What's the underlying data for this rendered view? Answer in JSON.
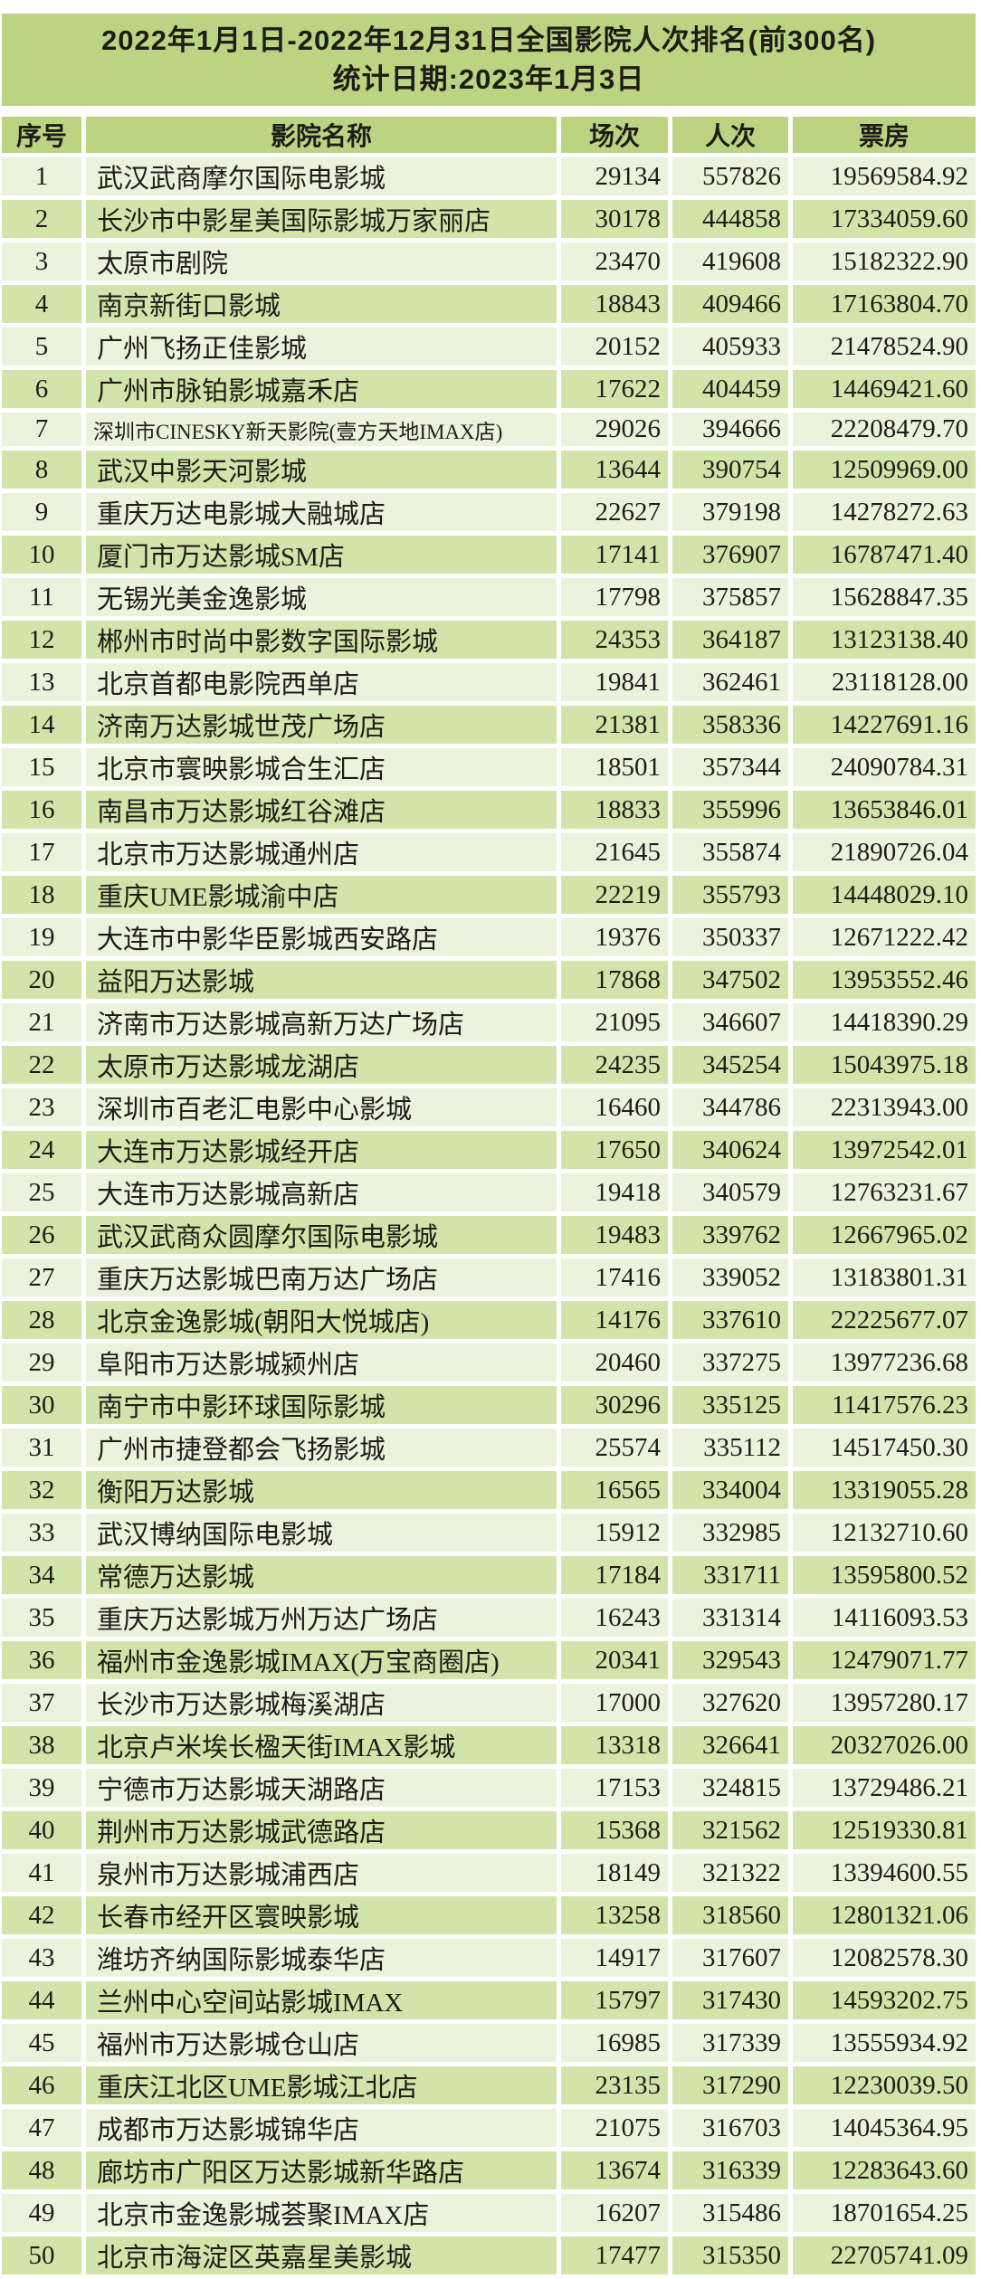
{
  "title": {
    "line1": "2022年1月1日-2022年12月31日全国影院人次排名(前300名)",
    "line2": "统计日期:2023年1月3日"
  },
  "table": {
    "columns": [
      "序号",
      "影院名称",
      "场次",
      "人次",
      "票房"
    ],
    "narrow_name_ranks": [
      7
    ],
    "rows": [
      [
        1,
        "武汉武商摩尔国际电影城",
        "29134",
        "557826",
        "19569584.92"
      ],
      [
        2,
        "长沙市中影星美国际影城万家丽店",
        "30178",
        "444858",
        "17334059.60"
      ],
      [
        3,
        "太原市剧院",
        "23470",
        "419608",
        "15182322.90"
      ],
      [
        4,
        "南京新街口影城",
        "18843",
        "409466",
        "17163804.70"
      ],
      [
        5,
        "广州飞扬正佳影城",
        "20152",
        "405933",
        "21478524.90"
      ],
      [
        6,
        "广州市脉铂影城嘉禾店",
        "17622",
        "404459",
        "14469421.60"
      ],
      [
        7,
        "深圳市CINESKY新天影院(壹方天地IMAX店)",
        "29026",
        "394666",
        "22208479.70"
      ],
      [
        8,
        "武汉中影天河影城",
        "13644",
        "390754",
        "12509969.00"
      ],
      [
        9,
        "重庆万达电影城大融城店",
        "22627",
        "379198",
        "14278272.63"
      ],
      [
        10,
        "厦门市万达影城SM店",
        "17141",
        "376907",
        "16787471.40"
      ],
      [
        11,
        "无锡光美金逸影城",
        "17798",
        "375857",
        "15628847.35"
      ],
      [
        12,
        "郴州市时尚中影数字国际影城",
        "24353",
        "364187",
        "13123138.40"
      ],
      [
        13,
        "北京首都电影院西单店",
        "19841",
        "362461",
        "23118128.00"
      ],
      [
        14,
        "济南万达影城世茂广场店",
        "21381",
        "358336",
        "14227691.16"
      ],
      [
        15,
        "北京市寰映影城合生汇店",
        "18501",
        "357344",
        "24090784.31"
      ],
      [
        16,
        "南昌市万达影城红谷滩店",
        "18833",
        "355996",
        "13653846.01"
      ],
      [
        17,
        "北京市万达影城通州店",
        "21645",
        "355874",
        "21890726.04"
      ],
      [
        18,
        "重庆UME影城渝中店",
        "22219",
        "355793",
        "14448029.10"
      ],
      [
        19,
        "大连市中影华臣影城西安路店",
        "19376",
        "350337",
        "12671222.42"
      ],
      [
        20,
        "益阳万达影城",
        "17868",
        "347502",
        "13953552.46"
      ],
      [
        21,
        "济南市万达影城高新万达广场店",
        "21095",
        "346607",
        "14418390.29"
      ],
      [
        22,
        "太原市万达影城龙湖店",
        "24235",
        "345254",
        "15043975.18"
      ],
      [
        23,
        "深圳市百老汇电影中心影城",
        "16460",
        "344786",
        "22313943.00"
      ],
      [
        24,
        "大连市万达影城经开店",
        "17650",
        "340624",
        "13972542.01"
      ],
      [
        25,
        "大连市万达影城高新店",
        "19418",
        "340579",
        "12763231.67"
      ],
      [
        26,
        "武汉武商众圆摩尔国际电影城",
        "19483",
        "339762",
        "12667965.02"
      ],
      [
        27,
        "重庆万达影城巴南万达广场店",
        "17416",
        "339052",
        "13183801.31"
      ],
      [
        28,
        "北京金逸影城(朝阳大悦城店)",
        "14176",
        "337610",
        "22225677.07"
      ],
      [
        29,
        "阜阳市万达影城颍州店",
        "20460",
        "337275",
        "13977236.68"
      ],
      [
        30,
        "南宁市中影环球国际影城",
        "30296",
        "335125",
        "11417576.23"
      ],
      [
        31,
        "广州市捷登都会飞扬影城",
        "25574",
        "335112",
        "14517450.30"
      ],
      [
        32,
        "衡阳万达影城",
        "16565",
        "334004",
        "13319055.28"
      ],
      [
        33,
        "武汉博纳国际电影城",
        "15912",
        "332985",
        "12132710.60"
      ],
      [
        34,
        "常德万达影城",
        "17184",
        "331711",
        "13595800.52"
      ],
      [
        35,
        "重庆万达影城万州万达广场店",
        "16243",
        "331314",
        "14116093.53"
      ],
      [
        36,
        "福州市金逸影城IMAX(万宝商圈店)",
        "20341",
        "329543",
        "12479071.77"
      ],
      [
        37,
        "长沙市万达影城梅溪湖店",
        "17000",
        "327620",
        "13957280.17"
      ],
      [
        38,
        "北京卢米埃长楹天街IMAX影城",
        "13318",
        "326641",
        "20327026.00"
      ],
      [
        39,
        "宁德市万达影城天湖路店",
        "17153",
        "324815",
        "13729486.21"
      ],
      [
        40,
        "荆州市万达影城武德路店",
        "15368",
        "321562",
        "12519330.81"
      ],
      [
        41,
        "泉州市万达影城浦西店",
        "18149",
        "321322",
        "13394600.55"
      ],
      [
        42,
        "长春市经开区寰映影城",
        "13258",
        "318560",
        "12801321.06"
      ],
      [
        43,
        "潍坊齐纳国际影城泰华店",
        "14917",
        "317607",
        "12082578.30"
      ],
      [
        44,
        "兰州中心空间站影城IMAX",
        "15797",
        "317430",
        "14593202.75"
      ],
      [
        45,
        "福州市万达影城仓山店",
        "16985",
        "317339",
        "13555934.92"
      ],
      [
        46,
        "重庆江北区UME影城江北店",
        "23135",
        "317290",
        "12230039.50"
      ],
      [
        47,
        "成都市万达影城锦华店",
        "21075",
        "316703",
        "14045364.95"
      ],
      [
        48,
        "廊坊市广阳区万达影城新华路店",
        "13674",
        "316339",
        "12283643.60"
      ],
      [
        49,
        "北京市金逸影城荟聚IMAX店",
        "16207",
        "315486",
        "18701654.25"
      ],
      [
        50,
        "北京市海淀区英嘉星美影城",
        "17477",
        "315350",
        "22705741.09"
      ]
    ]
  },
  "colors": {
    "band": "#bcd481",
    "row_even": "#d3e4aa",
    "row_odd": "#ecf3dc",
    "background": "#ffffff",
    "text": "#1e1c18"
  }
}
